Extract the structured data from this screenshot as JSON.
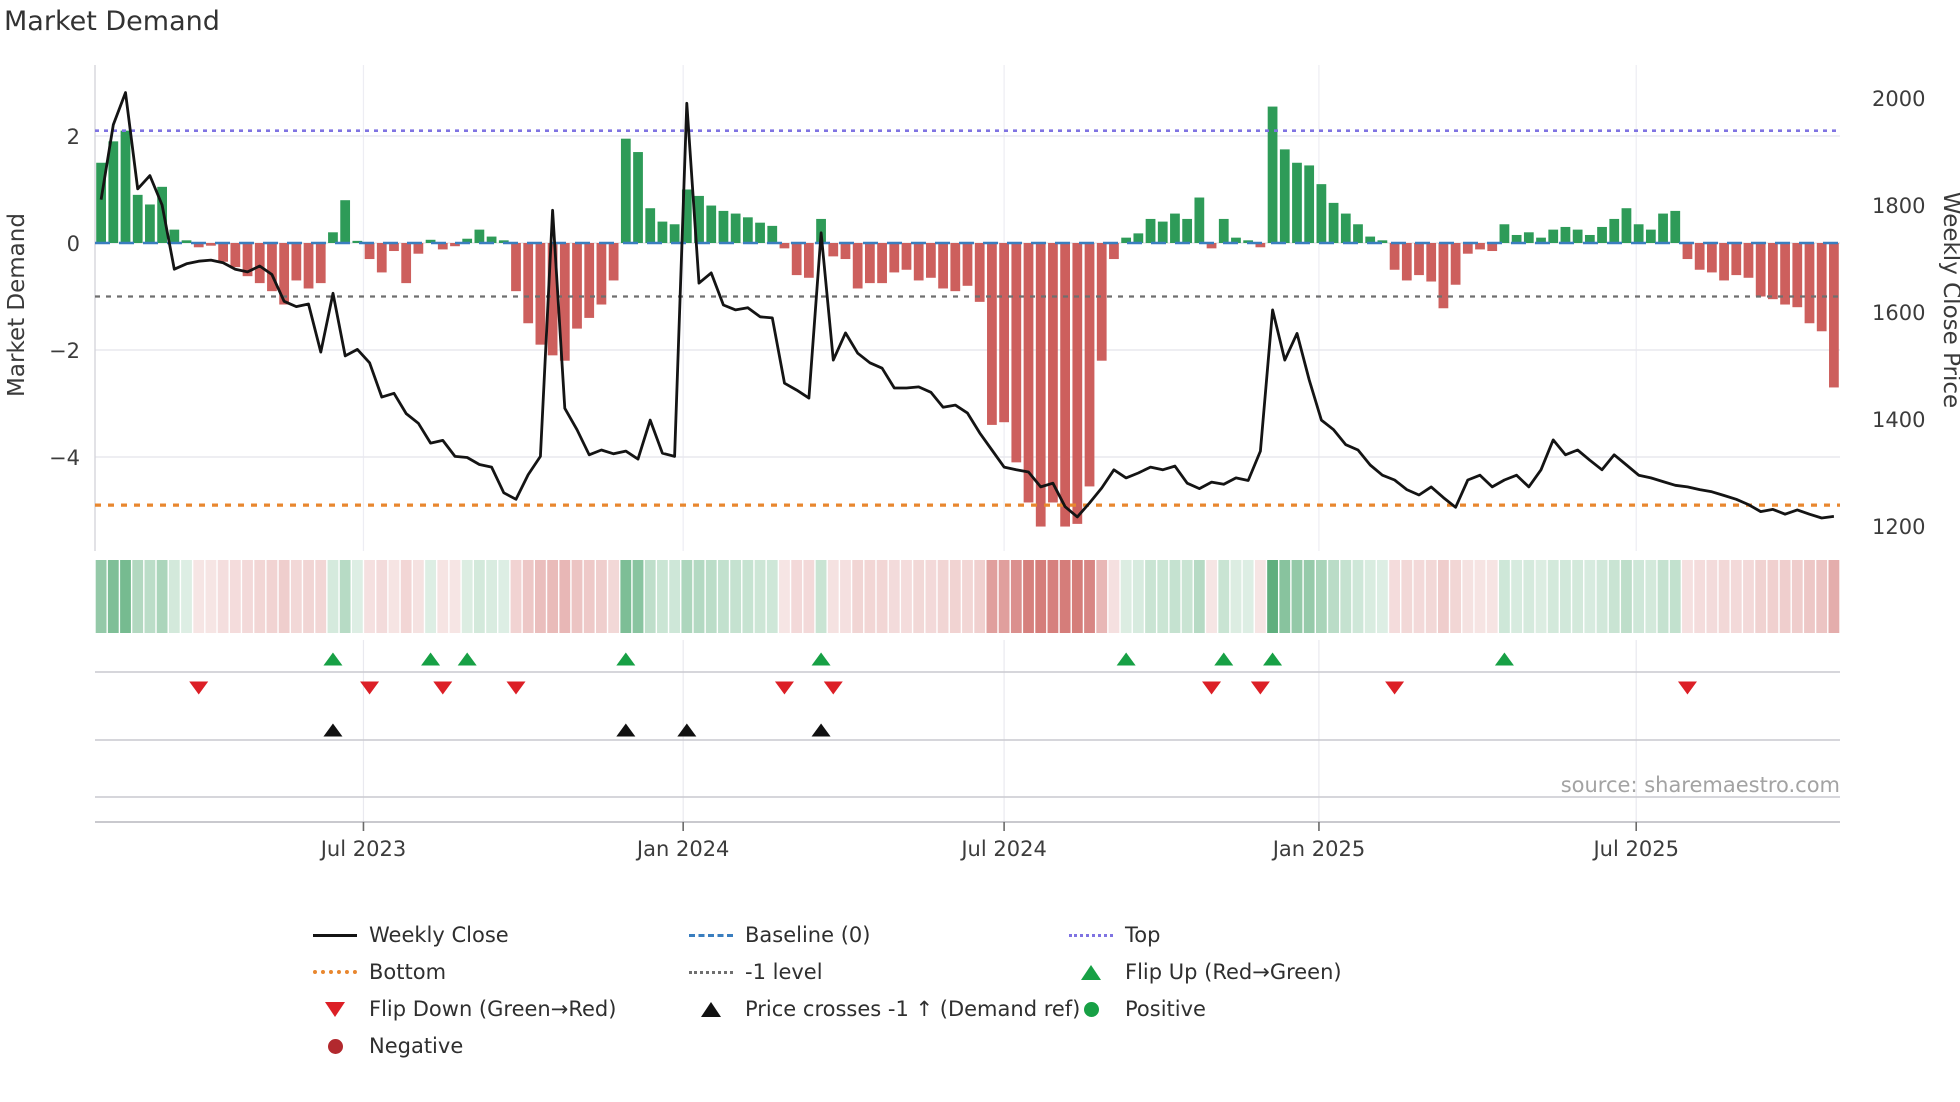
{
  "title": "Market Demand",
  "source": "source: sharemaestro.com",
  "axes": {
    "left_label": "Market Demand",
    "left_tick_labels": [
      "2",
      "0",
      "−2",
      "−4"
    ],
    "left_tick_values": [
      2,
      0,
      -2,
      -4
    ],
    "right_label": "Weekly Close Price",
    "right_tick_labels": [
      "2000",
      "1800",
      "1600",
      "1400",
      "1200"
    ],
    "right_tick_values": [
      2000,
      1800,
      1600,
      1400,
      1200
    ],
    "x_tick_labels": [
      "Jul 2023",
      "Jan 2024",
      "Jul 2024",
      "Jan 2025",
      "Jul 2025"
    ],
    "x_tick_weeks": [
      21.5,
      47.7,
      74.0,
      99.8,
      125.8
    ]
  },
  "colors": {
    "bar_positive": "#2e9b58",
    "bar_negative": "#cd5f5d",
    "price_line": "#141414",
    "baseline": "#3a7ebf",
    "top_line": "#7f73e2",
    "minus_one_line": "#6f6f6f",
    "bottom_line": "#e8872f",
    "flip_up_marker": "#17a045",
    "flip_down_marker": "#dc1f26",
    "cross_marker": "#111111",
    "positive_dot": "#17a045",
    "negative_dot": "#b2292e",
    "heat_green_rgb": [
      45,
      150,
      85
    ],
    "heat_red_rgb": [
      202,
      92,
      89
    ]
  },
  "chart_data": {
    "type": "bar+line",
    "title": "Market Demand",
    "ylabel_left": "Market Demand",
    "ylabel_right": "Weekly Close Price",
    "weeks": 143,
    "x_range_note": "weekly points, Feb 2023 through Nov 2025",
    "ylim_left": [
      -5.75,
      3.3
    ],
    "ylim_right": [
      1153,
      2062
    ],
    "grid": true,
    "legend_position": "bottom",
    "baseline_level": 0,
    "top_level": 2.1,
    "minus_one_level": -1,
    "bottom_level": -4.9,
    "demand": [
      1.5,
      1.9,
      2.1,
      0.9,
      0.72,
      1.05,
      0.25,
      0.05,
      -0.08,
      -0.05,
      -0.35,
      -0.45,
      -0.62,
      -0.75,
      -0.9,
      -1.15,
      -0.7,
      -0.85,
      -0.75,
      0.2,
      0.8,
      0.04,
      -0.3,
      -0.55,
      -0.15,
      -0.75,
      -0.2,
      0.06,
      -0.12,
      -0.06,
      0.08,
      0.25,
      0.12,
      0.05,
      -0.9,
      -1.5,
      -1.9,
      -2.1,
      -2.2,
      -1.6,
      -1.4,
      -1.15,
      -0.7,
      1.95,
      1.7,
      0.65,
      0.4,
      0.35,
      1.0,
      0.88,
      0.7,
      0.6,
      0.55,
      0.48,
      0.38,
      0.32,
      -0.1,
      -0.6,
      -0.65,
      0.45,
      -0.25,
      -0.3,
      -0.85,
      -0.75,
      -0.75,
      -0.55,
      -0.5,
      -0.7,
      -0.65,
      -0.85,
      -0.9,
      -0.8,
      -1.1,
      -3.4,
      -3.35,
      -4.1,
      -4.85,
      -5.3,
      -4.85,
      -5.3,
      -5.25,
      -4.55,
      -2.2,
      -0.3,
      0.1,
      0.18,
      0.45,
      0.4,
      0.55,
      0.45,
      0.85,
      -0.1,
      0.45,
      0.1,
      0.05,
      -0.08,
      2.55,
      1.75,
      1.5,
      1.45,
      1.1,
      0.75,
      0.55,
      0.35,
      0.12,
      0.05,
      -0.5,
      -0.7,
      -0.6,
      -0.72,
      -1.22,
      -0.78,
      -0.2,
      -0.12,
      -0.15,
      0.35,
      0.15,
      0.2,
      0.1,
      0.25,
      0.3,
      0.25,
      0.15,
      0.3,
      0.45,
      0.65,
      0.35,
      0.25,
      0.55,
      0.6,
      -0.3,
      -0.5,
      -0.55,
      -0.7,
      -0.6,
      -0.65,
      -1.0,
      -1.05,
      -1.15,
      -1.2,
      -1.5,
      -1.65,
      -2.7
    ],
    "price": [
      1810,
      1950,
      2010,
      1830,
      1855,
      1800,
      1680,
      1690,
      1695,
      1697,
      1692,
      1680,
      1675,
      1686,
      1670,
      1620,
      1610,
      1615,
      1525,
      1635,
      1518,
      1530,
      1505,
      1441,
      1448,
      1410,
      1392,
      1355,
      1360,
      1330,
      1328,
      1315,
      1310,
      1262,
      1250,
      1296,
      1330,
      1790,
      1420,
      1380,
      1333,
      1342,
      1335,
      1340,
      1325,
      1398,
      1336,
      1330,
      1990,
      1654,
      1673,
      1613,
      1604,
      1608,
      1591,
      1589,
      1467,
      1454,
      1439,
      1748,
      1510,
      1561,
      1523,
      1505,
      1495,
      1458,
      1458,
      1460,
      1450,
      1422,
      1426,
      1411,
      1374,
      1342,
      1310,
      1305,
      1301,
      1273,
      1280,
      1236,
      1217,
      1243,
      1271,
      1305,
      1290,
      1299,
      1310,
      1305,
      1312,
      1280,
      1270,
      1282,
      1278,
      1290,
      1285,
      1340,
      1604,
      1510,
      1560,
      1473,
      1398,
      1380,
      1352,
      1342,
      1314,
      1295,
      1286,
      1268,
      1258,
      1273,
      1253,
      1235,
      1286,
      1295,
      1273,
      1286,
      1295,
      1273,
      1305,
      1361,
      1333,
      1342,
      1323,
      1305,
      1333,
      1314,
      1295,
      1290,
      1283,
      1276,
      1273,
      1268,
      1264,
      1257,
      1250,
      1240,
      1227,
      1231,
      1222,
      1230,
      1222,
      1215,
      1218
    ],
    "flip_up_weeks": [
      19,
      27,
      30,
      43,
      59,
      84,
      92,
      96,
      115
    ],
    "flip_down_weeks": [
      8,
      22,
      28,
      34,
      56,
      60,
      91,
      95,
      106,
      130
    ],
    "price_cross_weeks": [
      19,
      43,
      48,
      59
    ]
  },
  "legend": {
    "col1": [
      {
        "swatch": "line-black",
        "label": "Weekly Close"
      },
      {
        "swatch": "dotted-orange",
        "label": "Bottom"
      },
      {
        "swatch": "tri-down-red",
        "label": "Flip Down (Green→Red)"
      },
      {
        "swatch": "circle-darkred",
        "label": "Negative"
      }
    ],
    "col2": [
      {
        "swatch": "dash-blue",
        "label": "Baseline (0)"
      },
      {
        "swatch": "dotted-gray",
        "label": "-1 level"
      },
      {
        "swatch": "tri-up-black",
        "label": "Price crosses -1 ↑ (Demand ref)"
      }
    ],
    "col3": [
      {
        "swatch": "dotted-purple",
        "label": "Top"
      },
      {
        "swatch": "tri-up-green",
        "label": "Flip Up (Red→Green)"
      },
      {
        "swatch": "circle-green",
        "label": "Positive"
      }
    ]
  }
}
